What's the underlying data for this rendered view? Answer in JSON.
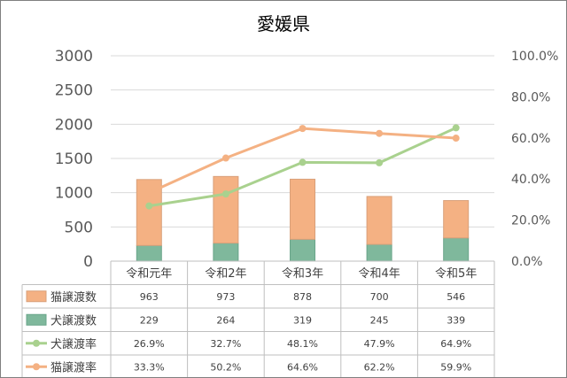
{
  "chart_data": {
    "type": "bar",
    "title": "愛媛県",
    "categories": [
      "令和元年",
      "令和2年",
      "令和3年",
      "令和4年",
      "令和5年"
    ],
    "y_left": {
      "lim": [
        0,
        3000
      ],
      "ticks": [
        "0",
        "500",
        "1000",
        "1500",
        "2000",
        "2500",
        "3000"
      ]
    },
    "y_right": {
      "lim": [
        0,
        100
      ],
      "ticks": [
        "0.0%",
        "20.0%",
        "40.0%",
        "60.0%",
        "80.0%",
        "100.0%"
      ]
    },
    "grid": true,
    "stacked": true,
    "series": [
      {
        "name": "猫譲渡数",
        "kind": "bar",
        "axis": "left",
        "color": "#f4b183",
        "values": [
          963,
          973,
          878,
          700,
          546
        ],
        "labels": [
          "963",
          "973",
          "878",
          "700",
          "546"
        ]
      },
      {
        "name": "犬譲渡数",
        "kind": "bar",
        "axis": "left",
        "color": "#7fb89c",
        "values": [
          229,
          264,
          319,
          245,
          339
        ],
        "labels": [
          "229",
          "264",
          "319",
          "245",
          "339"
        ]
      },
      {
        "name": "犬譲渡率",
        "kind": "line",
        "axis": "right",
        "color": "#a9d18e",
        "values": [
          26.9,
          32.7,
          48.1,
          47.9,
          64.9
        ],
        "labels": [
          "26.9%",
          "32.7%",
          "48.1%",
          "47.9%",
          "64.9%"
        ]
      },
      {
        "name": "猫譲渡率",
        "kind": "line",
        "axis": "right",
        "color": "#f4b183",
        "values": [
          33.3,
          50.2,
          64.6,
          62.2,
          59.9
        ],
        "labels": [
          "33.3%",
          "50.2%",
          "64.6%",
          "62.2%",
          "59.9%"
        ]
      }
    ]
  }
}
